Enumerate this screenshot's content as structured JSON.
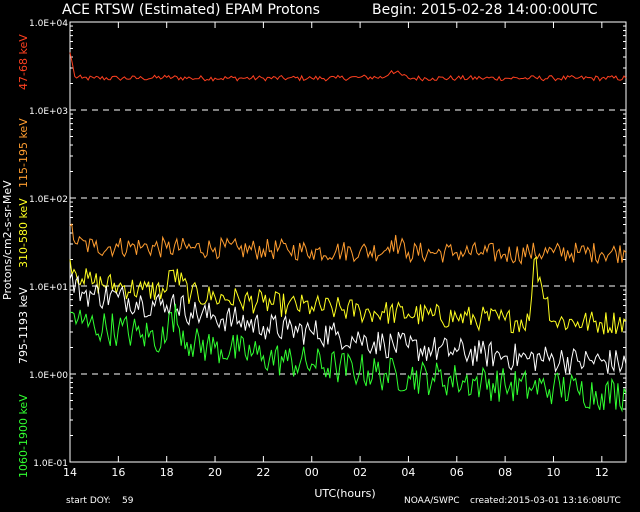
{
  "header": {
    "title": "ACE RTSW (Estimated) EPAM Protons",
    "begin": "Begin: 2015-02-28 14:00:00UTC"
  },
  "footer": {
    "start_doy_label": "start DOY:",
    "start_doy": "59",
    "source": "NOAA/SWPC",
    "created": "created:2015-03-01 13:16:08UTC"
  },
  "chart_data": {
    "type": "line",
    "xlabel": "UTC(hours)",
    "ylabel": "Protons/cm2-s-sr-MeV",
    "yscale": "log",
    "ylim": [
      0.1,
      10000
    ],
    "xlim": [
      14,
      37
    ],
    "x_ticks": [
      "14",
      "16",
      "18",
      "20",
      "22",
      "00",
      "02",
      "04",
      "06",
      "08",
      "10",
      "12",
      "14"
    ],
    "y_ticks": [
      "1.0E-01",
      "1.0E+00",
      "1.0E+01",
      "1.0E+02",
      "1.0E+03",
      "1.0E+04"
    ],
    "grid": "dashed horizontal at 1.0E+00, 1.0E+01, 1.0E+02, 1.0E+03",
    "series": [
      {
        "name": "47-68 keV",
        "color": "#ff4020",
        "x": [
          14.0,
          14.2,
          14.5,
          15,
          16,
          17,
          18,
          19,
          20,
          21,
          22,
          23,
          24,
          25,
          26,
          27,
          27.3,
          28,
          29,
          30,
          31,
          32,
          33,
          34,
          35,
          36,
          37
        ],
        "values": [
          4500,
          2400,
          2300,
          2300,
          2300,
          2300,
          2350,
          2300,
          2300,
          2300,
          2300,
          2300,
          2300,
          2300,
          2350,
          2350,
          2800,
          2300,
          2300,
          2300,
          2300,
          2300,
          2300,
          2300,
          2300,
          2300,
          2300
        ]
      },
      {
        "name": "115-195 keV",
        "color": "#ff9d30",
        "x": [
          14.0,
          14.3,
          15,
          16,
          17,
          18,
          19,
          20,
          21,
          22,
          23,
          24,
          25,
          26,
          27,
          27.3,
          28,
          29,
          30,
          31,
          32,
          33,
          34,
          35,
          36,
          37
        ],
        "values": [
          48,
          30,
          28,
          28,
          28,
          27,
          27,
          27,
          26,
          26,
          26,
          25,
          25,
          25,
          25,
          33,
          24,
          24,
          24,
          24,
          23,
          24,
          24,
          24,
          24,
          24
        ]
      },
      {
        "name": "310-580 keV",
        "color": "#ffff20",
        "x": [
          14.0,
          14.5,
          15,
          16,
          17,
          18,
          18.2,
          19,
          20,
          21,
          22,
          23,
          24,
          25,
          26,
          27,
          28,
          29,
          30,
          31,
          32,
          33,
          33.2,
          34,
          35,
          36,
          37
        ],
        "values": [
          20,
          12,
          11,
          10,
          9,
          9,
          15,
          8,
          7.5,
          7,
          6.5,
          6,
          5.8,
          5.5,
          5.2,
          5,
          4.8,
          4.6,
          4.4,
          4.3,
          4.1,
          4.0,
          20,
          4.0,
          3.9,
          3.8,
          4.0
        ]
      },
      {
        "name": "795-1193 keV",
        "color": "#ffffff",
        "x": [
          14.0,
          14.5,
          15,
          16,
          17,
          18,
          18.2,
          19,
          20,
          21,
          22,
          23,
          24,
          25,
          26,
          27,
          28,
          29,
          30,
          31,
          32,
          33,
          34,
          35,
          36,
          37
        ],
        "values": [
          12,
          8.5,
          8,
          7.5,
          6.5,
          6,
          7,
          5,
          4.5,
          4,
          3.5,
          3.2,
          3.0,
          2.8,
          2.5,
          2.2,
          2.0,
          1.9,
          1.8,
          1.7,
          1.6,
          1.5,
          1.5,
          1.4,
          1.4,
          1.3
        ]
      },
      {
        "name": "1060-1900 keV",
        "color": "#30ff30",
        "x": [
          14.0,
          14.5,
          15,
          16,
          17,
          18,
          18.2,
          19,
          20,
          21,
          22,
          23,
          24,
          25,
          26,
          27,
          28,
          29,
          30,
          31,
          32,
          33,
          34,
          35,
          36,
          37
        ],
        "values": [
          5,
          3.8,
          3.5,
          3.2,
          2.8,
          2.5,
          5,
          2.2,
          2,
          1.8,
          1.6,
          1.4,
          1.3,
          1.2,
          1.1,
          1.0,
          0.95,
          0.9,
          0.85,
          0.8,
          0.75,
          0.7,
          0.7,
          0.65,
          0.6,
          0.6
        ]
      }
    ]
  }
}
